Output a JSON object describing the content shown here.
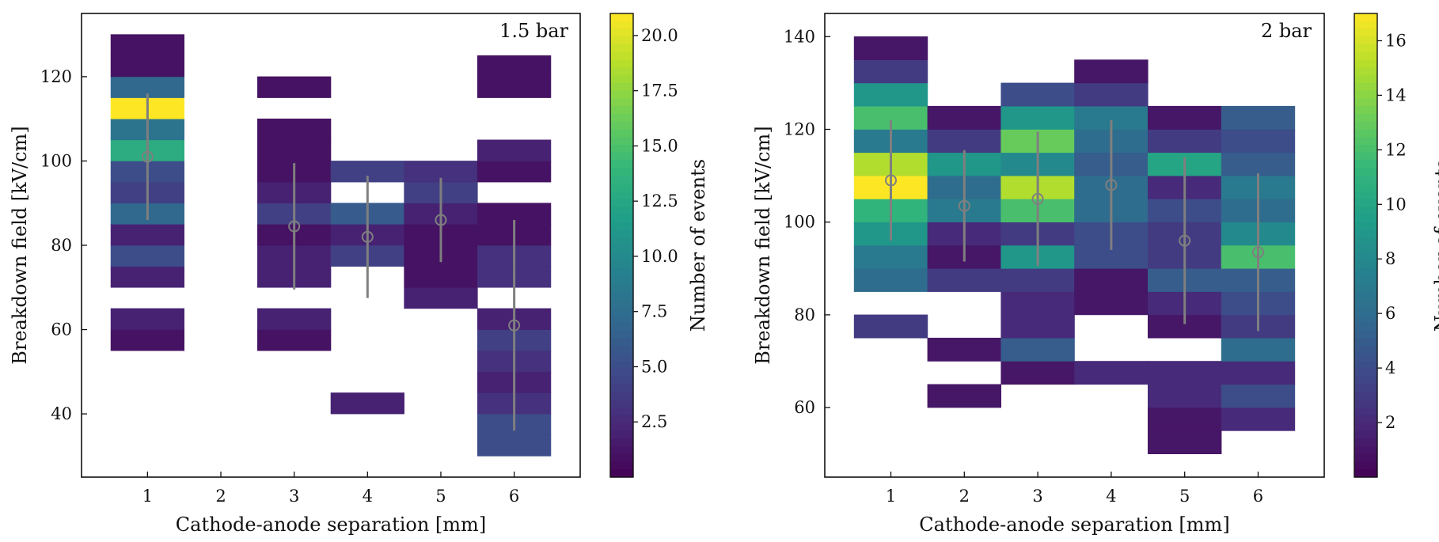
{
  "chart_data": [
    {
      "type": "heatmap",
      "title": "1.5 bar",
      "xlabel": "Cathode-anode separation [mm]",
      "ylabel": "Breakdown field [kV/cm]",
      "xlim": [
        0.1,
        6.9
      ],
      "ylim": [
        25,
        135
      ],
      "xticks": [
        1,
        2,
        3,
        4,
        5,
        6
      ],
      "yticks": [
        40,
        60,
        80,
        100,
        120
      ],
      "bin_width_x": 1,
      "bin_height_y": 5,
      "colorbar": {
        "label": "Number of events",
        "min": 0,
        "max": 21,
        "ticks": [
          2.5,
          5.0,
          7.5,
          10.0,
          12.5,
          15.0,
          17.5,
          20.0
        ],
        "tick_labels": [
          "2.5",
          "5.0",
          "7.5",
          "10.0",
          "12.5",
          "15.0",
          "17.5",
          "20.0"
        ]
      },
      "bins": [
        {
          "x": 1,
          "y": 55,
          "count": 1
        },
        {
          "x": 1,
          "y": 60,
          "count": 2
        },
        {
          "x": 1,
          "y": 70,
          "count": 2
        },
        {
          "x": 1,
          "y": 75,
          "count": 5
        },
        {
          "x": 1,
          "y": 80,
          "count": 2
        },
        {
          "x": 1,
          "y": 85,
          "count": 7
        },
        {
          "x": 1,
          "y": 90,
          "count": 4
        },
        {
          "x": 1,
          "y": 95,
          "count": 5
        },
        {
          "x": 1,
          "y": 100,
          "count": 13
        },
        {
          "x": 1,
          "y": 105,
          "count": 8
        },
        {
          "x": 1,
          "y": 110,
          "count": 21
        },
        {
          "x": 1,
          "y": 115,
          "count": 7
        },
        {
          "x": 1,
          "y": 120,
          "count": 1
        },
        {
          "x": 1,
          "y": 125,
          "count": 1
        },
        {
          "x": 3,
          "y": 55,
          "count": 1
        },
        {
          "x": 3,
          "y": 60,
          "count": 2
        },
        {
          "x": 3,
          "y": 70,
          "count": 2
        },
        {
          "x": 3,
          "y": 75,
          "count": 2
        },
        {
          "x": 3,
          "y": 80,
          "count": 1
        },
        {
          "x": 3,
          "y": 85,
          "count": 4
        },
        {
          "x": 3,
          "y": 90,
          "count": 2
        },
        {
          "x": 3,
          "y": 95,
          "count": 1
        },
        {
          "x": 3,
          "y": 100,
          "count": 1
        },
        {
          "x": 3,
          "y": 105,
          "count": 1
        },
        {
          "x": 3,
          "y": 115,
          "count": 1
        },
        {
          "x": 4,
          "y": 40,
          "count": 2
        },
        {
          "x": 4,
          "y": 75,
          "count": 4
        },
        {
          "x": 4,
          "y": 80,
          "count": 2
        },
        {
          "x": 4,
          "y": 85,
          "count": 6
        },
        {
          "x": 4,
          "y": 95,
          "count": 4
        },
        {
          "x": 5,
          "y": 65,
          "count": 2
        },
        {
          "x": 5,
          "y": 70,
          "count": 1
        },
        {
          "x": 5,
          "y": 75,
          "count": 1
        },
        {
          "x": 5,
          "y": 80,
          "count": 1
        },
        {
          "x": 5,
          "y": 85,
          "count": 2
        },
        {
          "x": 5,
          "y": 90,
          "count": 4
        },
        {
          "x": 5,
          "y": 95,
          "count": 3
        },
        {
          "x": 6,
          "y": 30,
          "count": 5
        },
        {
          "x": 6,
          "y": 35,
          "count": 5
        },
        {
          "x": 6,
          "y": 40,
          "count": 3
        },
        {
          "x": 6,
          "y": 45,
          "count": 2
        },
        {
          "x": 6,
          "y": 50,
          "count": 3
        },
        {
          "x": 6,
          "y": 55,
          "count": 4
        },
        {
          "x": 6,
          "y": 60,
          "count": 2
        },
        {
          "x": 6,
          "y": 70,
          "count": 3
        },
        {
          "x": 6,
          "y": 75,
          "count": 3
        },
        {
          "x": 6,
          "y": 80,
          "count": 1
        },
        {
          "x": 6,
          "y": 85,
          "count": 1
        },
        {
          "x": 6,
          "y": 95,
          "count": 1
        },
        {
          "x": 6,
          "y": 100,
          "count": 2
        },
        {
          "x": 6,
          "y": 115,
          "count": 1
        },
        {
          "x": 6,
          "y": 120,
          "count": 1
        }
      ],
      "means": [
        {
          "x": 1,
          "mean": 101,
          "std": 15
        },
        {
          "x": 3,
          "mean": 84.5,
          "std": 15
        },
        {
          "x": 4,
          "mean": 82,
          "std": 14.5
        },
        {
          "x": 5,
          "mean": 86,
          "std": 10
        },
        {
          "x": 6,
          "mean": 61,
          "std": 25
        }
      ]
    },
    {
      "type": "heatmap",
      "title": "2 bar",
      "xlabel": "Cathode-anode separation [mm]",
      "ylabel": "Breakdown field [kV/cm]",
      "xlim": [
        0.1,
        6.9
      ],
      "ylim": [
        45,
        145
      ],
      "xticks": [
        1,
        2,
        3,
        4,
        5,
        6
      ],
      "yticks": [
        60,
        80,
        100,
        120,
        140
      ],
      "bin_width_x": 1,
      "bin_height_y": 5,
      "colorbar": {
        "label": "Number of events",
        "min": 0,
        "max": 17,
        "ticks": [
          2,
          4,
          6,
          8,
          10,
          12,
          14,
          16
        ],
        "tick_labels": [
          "2",
          "4",
          "6",
          "8",
          "10",
          "12",
          "14",
          "16"
        ]
      },
      "bins": [
        {
          "x": 1,
          "y": 75,
          "count": 3
        },
        {
          "x": 1,
          "y": 85,
          "count": 6
        },
        {
          "x": 1,
          "y": 90,
          "count": 7
        },
        {
          "x": 1,
          "y": 95,
          "count": 9
        },
        {
          "x": 1,
          "y": 100,
          "count": 11
        },
        {
          "x": 1,
          "y": 105,
          "count": 17
        },
        {
          "x": 1,
          "y": 110,
          "count": 15
        },
        {
          "x": 1,
          "y": 115,
          "count": 7
        },
        {
          "x": 1,
          "y": 120,
          "count": 12
        },
        {
          "x": 1,
          "y": 125,
          "count": 9
        },
        {
          "x": 1,
          "y": 130,
          "count": 3
        },
        {
          "x": 1,
          "y": 135,
          "count": 1
        },
        {
          "x": 2,
          "y": 60,
          "count": 1
        },
        {
          "x": 2,
          "y": 70,
          "count": 1
        },
        {
          "x": 2,
          "y": 85,
          "count": 3
        },
        {
          "x": 2,
          "y": 90,
          "count": 1
        },
        {
          "x": 2,
          "y": 95,
          "count": 2
        },
        {
          "x": 2,
          "y": 100,
          "count": 7
        },
        {
          "x": 2,
          "y": 105,
          "count": 6
        },
        {
          "x": 2,
          "y": 110,
          "count": 9
        },
        {
          "x": 2,
          "y": 115,
          "count": 3
        },
        {
          "x": 2,
          "y": 120,
          "count": 1
        },
        {
          "x": 3,
          "y": 65,
          "count": 1
        },
        {
          "x": 3,
          "y": 70,
          "count": 5
        },
        {
          "x": 3,
          "y": 75,
          "count": 2
        },
        {
          "x": 3,
          "y": 80,
          "count": 2
        },
        {
          "x": 3,
          "y": 85,
          "count": 3
        },
        {
          "x": 3,
          "y": 90,
          "count": 9
        },
        {
          "x": 3,
          "y": 95,
          "count": 3
        },
        {
          "x": 3,
          "y": 100,
          "count": 12
        },
        {
          "x": 3,
          "y": 105,
          "count": 15
        },
        {
          "x": 3,
          "y": 110,
          "count": 8
        },
        {
          "x": 3,
          "y": 115,
          "count": 13
        },
        {
          "x": 3,
          "y": 120,
          "count": 9
        },
        {
          "x": 3,
          "y": 125,
          "count": 4
        },
        {
          "x": 4,
          "y": 65,
          "count": 2
        },
        {
          "x": 4,
          "y": 80,
          "count": 1
        },
        {
          "x": 4,
          "y": 85,
          "count": 1
        },
        {
          "x": 4,
          "y": 90,
          "count": 4
        },
        {
          "x": 4,
          "y": 95,
          "count": 4
        },
        {
          "x": 4,
          "y": 100,
          "count": 6
        },
        {
          "x": 4,
          "y": 105,
          "count": 6
        },
        {
          "x": 4,
          "y": 110,
          "count": 5
        },
        {
          "x": 4,
          "y": 115,
          "count": 6
        },
        {
          "x": 4,
          "y": 120,
          "count": 7
        },
        {
          "x": 4,
          "y": 125,
          "count": 3
        },
        {
          "x": 4,
          "y": 130,
          "count": 1
        },
        {
          "x": 5,
          "y": 50,
          "count": 1
        },
        {
          "x": 5,
          "y": 55,
          "count": 1
        },
        {
          "x": 5,
          "y": 60,
          "count": 2
        },
        {
          "x": 5,
          "y": 65,
          "count": 2
        },
        {
          "x": 5,
          "y": 75,
          "count": 1
        },
        {
          "x": 5,
          "y": 80,
          "count": 2
        },
        {
          "x": 5,
          "y": 85,
          "count": 5
        },
        {
          "x": 5,
          "y": 90,
          "count": 3
        },
        {
          "x": 5,
          "y": 95,
          "count": 3
        },
        {
          "x": 5,
          "y": 100,
          "count": 4
        },
        {
          "x": 5,
          "y": 105,
          "count": 2
        },
        {
          "x": 5,
          "y": 110,
          "count": 10
        },
        {
          "x": 5,
          "y": 115,
          "count": 3
        },
        {
          "x": 5,
          "y": 120,
          "count": 1
        },
        {
          "x": 6,
          "y": 55,
          "count": 2
        },
        {
          "x": 6,
          "y": 60,
          "count": 4
        },
        {
          "x": 6,
          "y": 65,
          "count": 2
        },
        {
          "x": 6,
          "y": 70,
          "count": 6
        },
        {
          "x": 6,
          "y": 75,
          "count": 3
        },
        {
          "x": 6,
          "y": 80,
          "count": 4
        },
        {
          "x": 6,
          "y": 85,
          "count": 5
        },
        {
          "x": 6,
          "y": 90,
          "count": 12
        },
        {
          "x": 6,
          "y": 95,
          "count": 8
        },
        {
          "x": 6,
          "y": 100,
          "count": 6
        },
        {
          "x": 6,
          "y": 105,
          "count": 7
        },
        {
          "x": 6,
          "y": 110,
          "count": 5
        },
        {
          "x": 6,
          "y": 115,
          "count": 4
        },
        {
          "x": 6,
          "y": 120,
          "count": 5
        }
      ],
      "means": [
        {
          "x": 1,
          "mean": 109,
          "std": 13
        },
        {
          "x": 2,
          "mean": 103.5,
          "std": 12
        },
        {
          "x": 3,
          "mean": 105,
          "std": 14.5
        },
        {
          "x": 4,
          "mean": 108,
          "std": 14
        },
        {
          "x": 5,
          "mean": 96,
          "std": 18
        },
        {
          "x": 6,
          "mean": 93.5,
          "std": 17
        }
      ]
    }
  ]
}
